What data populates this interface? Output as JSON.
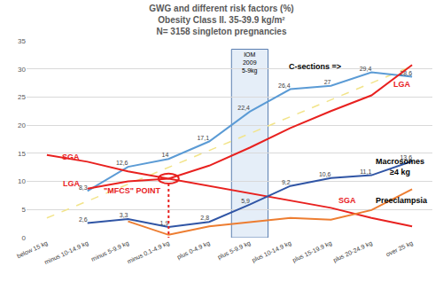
{
  "chart_data": {
    "type": "line",
    "title": "GWG and different risk factors (%)",
    "subtitle": [
      "Obesity Class II. 35-39.9 kg/m²",
      "N= 3158 singleton pregnancies"
    ],
    "categories": [
      "below 15 kg",
      "minus 10-14.9 kg",
      "minus 5-9.9 kg",
      "minus 0.1-4.9 kg",
      "plus 0-4.9 kg",
      "plus 5-9.9 kg",
      "plus 10-14.9 kg",
      "plus 15-19.9 kg",
      "plus 20-24.9 kg",
      "over 25 kg"
    ],
    "series": [
      {
        "color": "#f2e48a",
        "line_style": "dash",
        "values": [
          3.5,
          null,
          null,
          null,
          null,
          null,
          null,
          null,
          null,
          30.5
        ]
      },
      {
        "color": "#5b9bd5",
        "values": [
          null,
          8.3,
          12.6,
          14,
          17.1,
          22.4,
          26.4,
          27,
          29.4,
          28.6
        ],
        "value_labels": [
          null,
          "8,3",
          "12,6",
          "14",
          "17,1",
          "22,4",
          "26,4",
          "27",
          "29,4",
          "28,6"
        ]
      },
      {
        "color": "#e8211f",
        "values": [
          null,
          8.7,
          10,
          10.5,
          12.8,
          16,
          19.5,
          22.5,
          25.3,
          30.7
        ]
      },
      {
        "color": "#e8211f",
        "values": [
          14.7,
          13.5,
          11.8,
          10.5,
          9.3,
          8,
          6.7,
          5.3,
          3.5,
          2
        ]
      },
      {
        "color": "#3055a5",
        "values": [
          null,
          2.6,
          3.3,
          1.9,
          2.8,
          5.9,
          9.2,
          10.6,
          11.1,
          13.6
        ],
        "value_labels": [
          null,
          "2,6",
          "3,3",
          "1,9",
          "2,8",
          "5,9",
          "9,2",
          "10,6",
          "11,1",
          "13,6"
        ]
      },
      {
        "color": "#ed7d31",
        "values": [
          null,
          null,
          2.9,
          0.5,
          2,
          2.8,
          3.5,
          3.2,
          4.9,
          8.6
        ]
      }
    ],
    "ylim": [
      0,
      35
    ],
    "yticks": [
      0,
      5,
      10,
      15,
      20,
      25,
      30,
      35
    ],
    "grid": true,
    "data_labels": true,
    "annotations": [
      {
        "text": [
          "C-sections =>"
        ],
        "x": 6.6,
        "y": 30.5,
        "color": "#000000"
      },
      {
        "text": [
          "LGA"
        ],
        "x": 0.6,
        "y": 9.6,
        "color": "#e8211f"
      },
      {
        "text": [
          "LGA"
        ],
        "x": 8.75,
        "y": 27.2,
        "color": "#e8211f"
      },
      {
        "text": [
          "SGA"
        ],
        "x": 0.6,
        "y": 14.3,
        "color": "#e8211f"
      },
      {
        "text": [
          "SGA"
        ],
        "x": 7.4,
        "y": 6.6,
        "color": "#e8211f"
      },
      {
        "text": [
          "Macrosomes",
          "≥4 kg"
        ],
        "x": 8.7,
        "y": 12.6,
        "color": "#000000"
      },
      {
        "text": [
          "Preeclampsia"
        ],
        "x": 8.75,
        "y": 6.6,
        "color": "#000000"
      },
      {
        "text": [
          "\"MFCS\" POINT"
        ],
        "x": 2.1,
        "y": 8.3,
        "color": "#e8211f"
      }
    ],
    "iom_box": {
      "text": [
        "IOM",
        "2009",
        "5-9kg"
      ],
      "category": "plus 5-9.9 kg",
      "y": [
        0,
        33.5
      ],
      "color": "#5b7fb0"
    },
    "mfcs_point": {
      "category": "minus 0.1-4.9 kg",
      "y": 10.5,
      "color": "#e8211f"
    }
  }
}
